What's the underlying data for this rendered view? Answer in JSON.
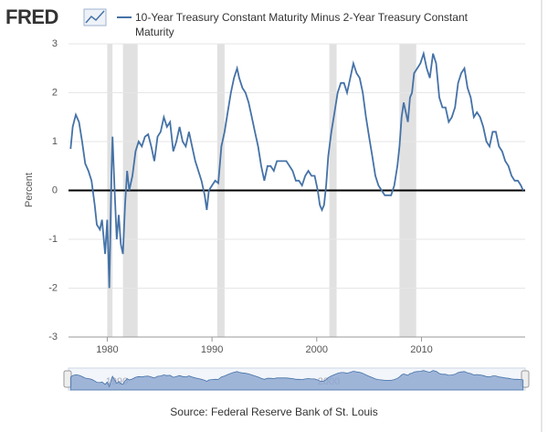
{
  "chart_data": {
    "type": "line",
    "logo": "FRED",
    "source": "Source: Federal Reserve Bank of St. Louis",
    "ylabel": "Percent",
    "series": [
      {
        "name": "10-Year Treasury Constant Maturity Minus 2-Year Treasury Constant Maturity",
        "color": "#4572a7",
        "x": [
          1976.5,
          1976.7,
          1977.0,
          1977.3,
          1977.6,
          1977.9,
          1978.2,
          1978.5,
          1978.8,
          1979.0,
          1979.3,
          1979.5,
          1979.8,
          1980.0,
          1980.2,
          1980.4,
          1980.5,
          1980.7,
          1980.9,
          1981.1,
          1981.3,
          1981.5,
          1981.7,
          1981.9,
          1982.1,
          1982.4,
          1982.7,
          1983.0,
          1983.3,
          1983.6,
          1983.9,
          1984.2,
          1984.5,
          1984.8,
          1985.1,
          1985.4,
          1985.7,
          1986.0,
          1986.3,
          1986.6,
          1986.9,
          1987.2,
          1987.5,
          1987.8,
          1988.1,
          1988.4,
          1988.7,
          1989.0,
          1989.3,
          1989.5,
          1989.7,
          1990.0,
          1990.3,
          1990.6,
          1990.9,
          1991.2,
          1991.5,
          1991.8,
          1992.1,
          1992.4,
          1992.6,
          1992.9,
          1993.2,
          1993.5,
          1993.8,
          1994.1,
          1994.4,
          1994.7,
          1995.0,
          1995.3,
          1995.6,
          1995.9,
          1996.2,
          1996.5,
          1996.8,
          1997.1,
          1997.4,
          1997.7,
          1998.0,
          1998.3,
          1998.6,
          1998.9,
          1999.2,
          1999.5,
          1999.8,
          2000.1,
          2000.3,
          2000.5,
          2000.7,
          2000.9,
          2001.1,
          2001.4,
          2001.7,
          2002.0,
          2002.3,
          2002.6,
          2002.9,
          2003.2,
          2003.5,
          2003.8,
          2004.1,
          2004.4,
          2004.7,
          2005.0,
          2005.3,
          2005.6,
          2005.9,
          2006.2,
          2006.5,
          2006.8,
          2007.1,
          2007.4,
          2007.7,
          2007.9,
          2008.1,
          2008.3,
          2008.5,
          2008.7,
          2008.9,
          2009.1,
          2009.3,
          2009.6,
          2009.9,
          2010.2,
          2010.5,
          2010.8,
          2011.1,
          2011.4,
          2011.7,
          2012.0,
          2012.3,
          2012.6,
          2012.9,
          2013.2,
          2013.5,
          2013.8,
          2014.1,
          2014.4,
          2014.7,
          2015.0,
          2015.3,
          2015.6,
          2015.9,
          2016.2,
          2016.5,
          2016.8,
          2017.1,
          2017.4,
          2017.7,
          2018.0,
          2018.3,
          2018.6,
          2018.9,
          2019.2,
          2019.5,
          2019.7
        ],
        "values": [
          0.85,
          1.3,
          1.55,
          1.4,
          1.0,
          0.55,
          0.4,
          0.2,
          -0.3,
          -0.7,
          -0.8,
          -0.6,
          -1.3,
          -0.6,
          -2.0,
          0.3,
          1.1,
          0.0,
          -1.0,
          -0.5,
          -1.1,
          -1.3,
          -0.3,
          0.4,
          0.0,
          0.3,
          0.8,
          1.0,
          0.9,
          1.1,
          1.15,
          0.9,
          0.6,
          1.1,
          1.2,
          1.5,
          1.3,
          1.4,
          0.8,
          1.0,
          1.3,
          1.0,
          0.9,
          1.2,
          0.9,
          0.6,
          0.4,
          0.2,
          -0.1,
          -0.4,
          0.0,
          0.1,
          0.2,
          0.15,
          0.9,
          1.2,
          1.6,
          2.0,
          2.3,
          2.5,
          2.3,
          2.1,
          2.0,
          1.8,
          1.5,
          1.2,
          0.9,
          0.5,
          0.2,
          0.5,
          0.5,
          0.4,
          0.6,
          0.6,
          0.6,
          0.6,
          0.5,
          0.4,
          0.2,
          0.2,
          0.1,
          0.3,
          0.4,
          0.3,
          0.3,
          0.0,
          -0.3,
          -0.4,
          -0.3,
          0.1,
          0.7,
          1.2,
          1.6,
          2.0,
          2.2,
          2.2,
          2.0,
          2.3,
          2.6,
          2.4,
          2.3,
          2.0,
          1.5,
          1.1,
          0.7,
          0.3,
          0.1,
          0.0,
          -0.1,
          -0.1,
          -0.1,
          0.1,
          0.5,
          0.9,
          1.5,
          1.8,
          1.6,
          1.4,
          1.9,
          2.0,
          2.4,
          2.5,
          2.6,
          2.8,
          2.5,
          2.3,
          2.8,
          2.6,
          1.9,
          1.7,
          1.7,
          1.4,
          1.5,
          1.7,
          2.2,
          2.4,
          2.5,
          2.1,
          1.9,
          1.5,
          1.6,
          1.5,
          1.3,
          1.0,
          0.9,
          1.2,
          1.2,
          0.9,
          0.8,
          0.6,
          0.5,
          0.3,
          0.2,
          0.2,
          0.1,
          0.0
        ]
      }
    ],
    "recessions": [
      [
        1980.0,
        1980.5
      ],
      [
        1981.5,
        1982.9
      ],
      [
        1990.5,
        1991.2
      ],
      [
        2001.2,
        2001.9
      ],
      [
        2007.9,
        2009.5
      ]
    ],
    "recession_color": "#e1e1e1",
    "xlim": [
      1976.3,
      2019.9
    ],
    "xticks": [
      1980,
      1990,
      2000,
      2010
    ],
    "ylim": [
      -3,
      3
    ],
    "yticks": [
      -3,
      -2,
      -1,
      0,
      1,
      2,
      3
    ],
    "navigator_ticks": [
      "1990",
      "2000"
    ]
  }
}
